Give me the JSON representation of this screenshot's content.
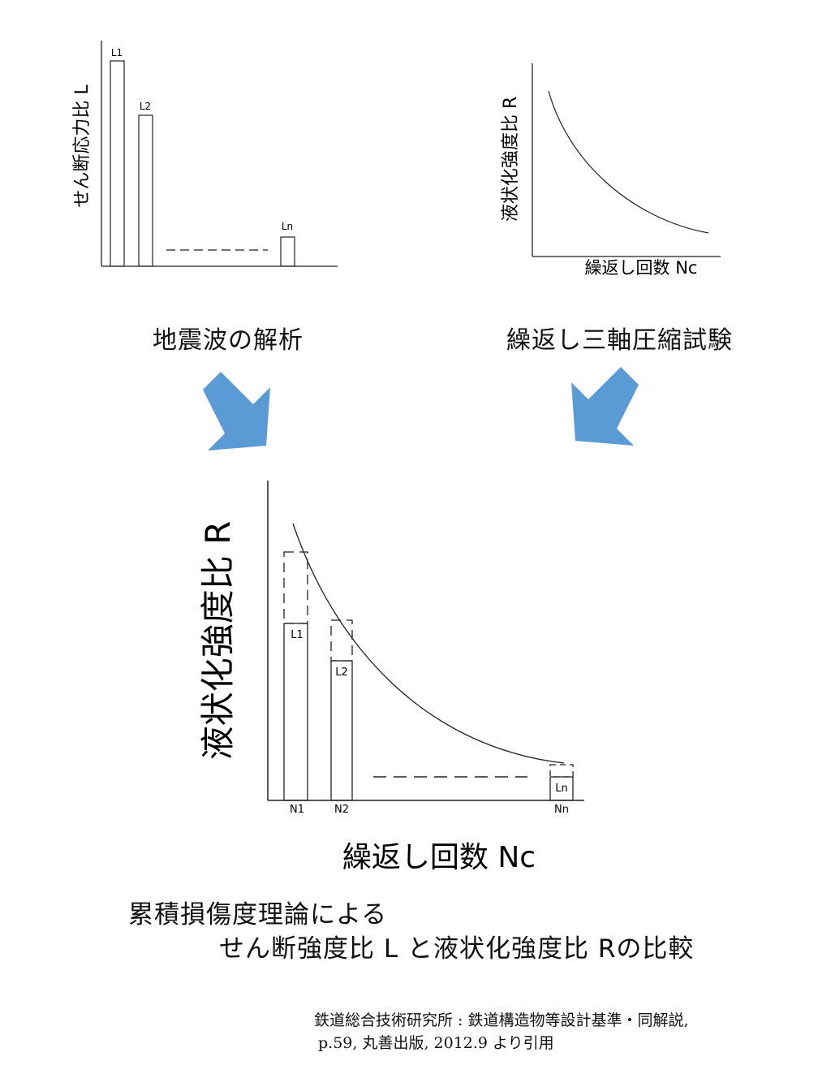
{
  "panel_left": {
    "ylabel": "せん断応力比 L",
    "bars": [
      "L1",
      "L2",
      "Ln"
    ],
    "caption": "地震波の解析"
  },
  "panel_right": {
    "ylabel": "液状化強度比 R",
    "xlabel": "繰返し回数 Nc",
    "caption": "繰返し三軸圧縮試験"
  },
  "arrow_color": "#5b9bd5",
  "panel_bottom": {
    "ylabel": "液状化強度比 R",
    "xlabel": "繰返し回数 Nc",
    "bar_labels": [
      "L1",
      "L2",
      "Ln"
    ],
    "tick_labels": [
      "N1",
      "N2",
      "Nn"
    ]
  },
  "summary": {
    "line1": "累積損傷度理論による",
    "line2": "せん断強度比 L と液状化強度比 Rの比較"
  },
  "citation": {
    "line1": "鉄道総合技術研究所 : 鉄道構造物等設計基準・同解説,",
    "line2": "p.59, 丸善出版, 2012.9 より引用"
  }
}
